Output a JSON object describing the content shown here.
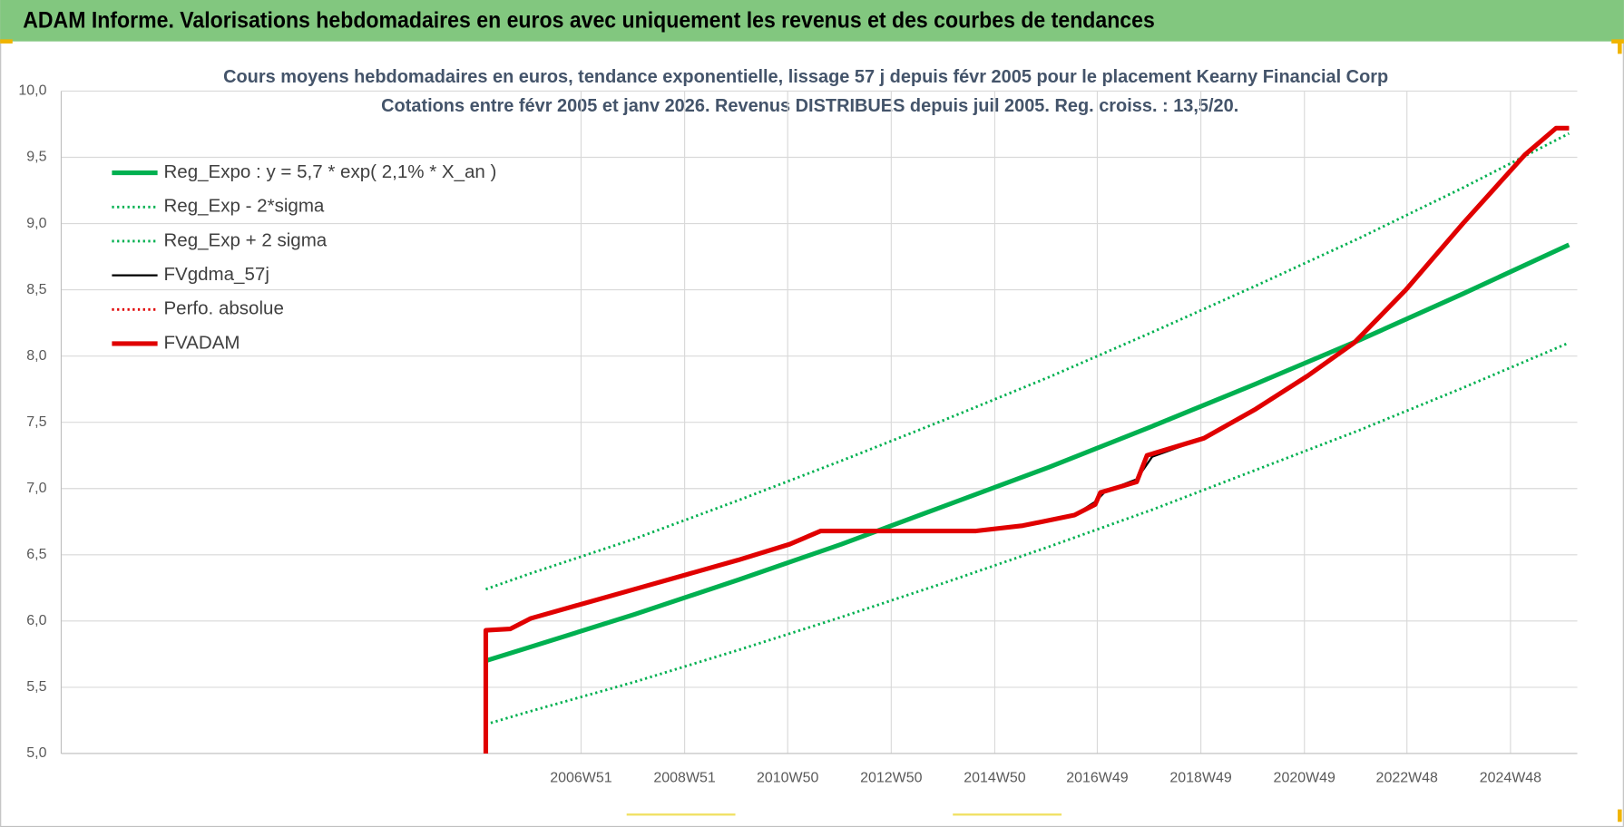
{
  "header": {
    "title": "ADAM Informe. Valorisations hebdomadaires en euros avec uniquement les revenus et des courbes de tendances"
  },
  "chart_data": {
    "type": "line",
    "title": "Cours moyens hebdomadaires en euros, tendance exponentielle, lissage 57 j depuis févr 2005 pour le placement Kearny Financial Corp",
    "subtitle": "Cotations entre févr 2005 et janv 2026. Revenus DISTRIBUES depuis juil 2005. Reg. croiss. : 13,5/20.",
    "xlim": [
      1996.93,
      2026.21
    ],
    "xticks": [
      {
        "value": 2006.97,
        "label": "2006W51"
      },
      {
        "value": 2008.97,
        "label": "2008W51"
      },
      {
        "value": 2010.96,
        "label": "2010W50"
      },
      {
        "value": 2012.96,
        "label": "2012W50"
      },
      {
        "value": 2014.96,
        "label": "2014W50"
      },
      {
        "value": 2016.94,
        "label": "2016W49"
      },
      {
        "value": 2018.94,
        "label": "2018W49"
      },
      {
        "value": 2020.94,
        "label": "2020W49"
      },
      {
        "value": 2022.92,
        "label": "2022W48"
      },
      {
        "value": 2024.92,
        "label": "2024W48"
      }
    ],
    "ylim": [
      5.0,
      10.0
    ],
    "yticks": [
      {
        "value": 5.0,
        "label": "5,0"
      },
      {
        "value": 5.5,
        "label": "5,5"
      },
      {
        "value": 6.0,
        "label": "6,0"
      },
      {
        "value": 6.5,
        "label": "6,5"
      },
      {
        "value": 7.0,
        "label": "7,0"
      },
      {
        "value": 7.5,
        "label": "7,5"
      },
      {
        "value": 8.0,
        "label": "8,0"
      },
      {
        "value": 8.5,
        "label": "8,5"
      },
      {
        "value": 9.0,
        "label": "9,0"
      },
      {
        "value": 9.5,
        "label": "9,5"
      },
      {
        "value": 10.0,
        "label": "10,0"
      }
    ],
    "grid": true,
    "legend": "upper-left",
    "series": [
      {
        "name": "Reg_Expo : y = 5,7 * exp( 2,1% *  X_an )",
        "color": "#00b050",
        "line_style": "thick",
        "x": [
          2005.13,
          2006,
          2008,
          2010,
          2012,
          2014,
          2016,
          2018,
          2020,
          2022,
          2024,
          2026.05
        ],
        "values": [
          5.7,
          5.805,
          6.05,
          6.31,
          6.58,
          6.87,
          7.16,
          7.47,
          7.79,
          8.12,
          8.47,
          8.84
        ]
      },
      {
        "name": "Reg_Exp - 2*sigma",
        "color": "#00b050",
        "line_style": "dotted",
        "x": [
          2005.13,
          2006,
          2008,
          2010,
          2012,
          2014,
          2016,
          2018,
          2020,
          2022,
          2024,
          2026.05
        ],
        "values": [
          5.22,
          5.32,
          5.54,
          5.78,
          6.03,
          6.29,
          6.56,
          6.84,
          7.14,
          7.44,
          7.76,
          8.1
        ]
      },
      {
        "name": "Reg_Exp + 2 sigma",
        "color": "#00b050",
        "line_style": "dotted",
        "x": [
          2005.13,
          2006,
          2008,
          2010,
          2012,
          2014,
          2016,
          2018,
          2020,
          2022,
          2024,
          2026.05
        ],
        "values": [
          6.24,
          6.36,
          6.62,
          6.91,
          7.21,
          7.52,
          7.84,
          8.18,
          8.53,
          8.89,
          9.27,
          9.68
        ]
      },
      {
        "name": "FVgdma_57j",
        "color": "#000000",
        "line_style": "thin",
        "x": [
          2005.13,
          2005.6,
          2006,
          2007,
          2008,
          2009,
          2010,
          2011,
          2011.6,
          2014.6,
          2015.5,
          2016.5,
          2016.9,
          2017.1,
          2017.7,
          2018.0,
          2019,
          2020,
          2021,
          2021.9,
          2022.9,
          2024,
          2025.2,
          2025.8,
          2026.05
        ],
        "values": [
          5.93,
          5.94,
          6.02,
          6.13,
          6.24,
          6.35,
          6.46,
          6.58,
          6.68,
          6.68,
          6.72,
          6.8,
          6.9,
          6.98,
          7.07,
          7.24,
          7.38,
          7.6,
          7.85,
          8.1,
          8.5,
          9.0,
          9.52,
          9.72,
          9.72
        ]
      },
      {
        "name": "Perfo. absolue",
        "color": "#e00000",
        "line_style": "dotted",
        "x": [
          2005.13,
          2005.6,
          2006,
          2007,
          2008,
          2009,
          2010,
          2011,
          2011.6,
          2014.6,
          2015.5,
          2016.5,
          2016.9,
          2017.0,
          2017.7,
          2017.9,
          2019,
          2020,
          2021,
          2021.9,
          2022.9,
          2024,
          2025.2,
          2025.8,
          2026.05
        ],
        "values": [
          5.93,
          5.94,
          6.02,
          6.13,
          6.24,
          6.35,
          6.46,
          6.58,
          6.68,
          6.68,
          6.72,
          6.8,
          6.88,
          6.97,
          7.05,
          7.25,
          7.38,
          7.6,
          7.85,
          8.1,
          8.5,
          9.0,
          9.52,
          9.72,
          9.72
        ]
      },
      {
        "name": "FVADAM",
        "color": "#e00000",
        "line_style": "thick",
        "x": [
          2005.13,
          2005.13,
          2005.6,
          2006,
          2007,
          2008,
          2009,
          2010,
          2011,
          2011.6,
          2014.6,
          2015.5,
          2016.5,
          2016.9,
          2017.0,
          2017.7,
          2017.9,
          2019,
          2020,
          2021,
          2021.9,
          2022.9,
          2024,
          2025.2,
          2025.8,
          2026.05
        ],
        "values": [
          5.0,
          5.93,
          5.94,
          6.02,
          6.13,
          6.24,
          6.35,
          6.46,
          6.58,
          6.68,
          6.68,
          6.72,
          6.8,
          6.88,
          6.97,
          7.05,
          7.25,
          7.38,
          7.6,
          7.85,
          8.1,
          8.5,
          9.0,
          9.52,
          9.72,
          9.72
        ]
      }
    ]
  }
}
